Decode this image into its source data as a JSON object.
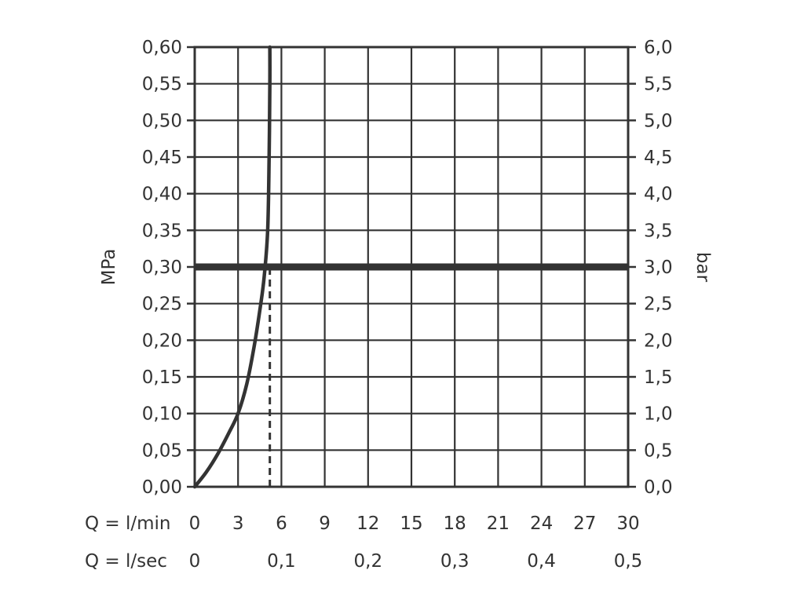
{
  "chart_data": {
    "type": "line",
    "x_unit_row_label": "Q = l/min",
    "x_secondary_row_label": "Q = l/sec",
    "x_ticks": [
      "0",
      "3",
      "6",
      "9",
      "12",
      "15",
      "18",
      "21",
      "24",
      "27",
      "30"
    ],
    "x_secondary_ticks": [
      {
        "x": 0,
        "label": "0"
      },
      {
        "x": 6,
        "label": "0,1"
      },
      {
        "x": 12,
        "label": "0,2"
      },
      {
        "x": 18,
        "label": "0,3"
      },
      {
        "x": 24,
        "label": "0,4"
      },
      {
        "x": 30,
        "label": "0,5"
      }
    ],
    "xlim": [
      0,
      30
    ],
    "ylabel_left": "MPa",
    "ylabel_right": "bar",
    "y_ticks_left": [
      "0,00",
      "0,05",
      "0,10",
      "0,15",
      "0,20",
      "0,25",
      "0,30",
      "0,35",
      "0,40",
      "0,45",
      "0,50",
      "0,55",
      "0,60"
    ],
    "y_ticks_right": [
      "0,0",
      "0,5",
      "1,0",
      "1,5",
      "2,0",
      "2,5",
      "3,0",
      "3,5",
      "4,0",
      "4,5",
      "5,0",
      "5,5",
      "6,0"
    ],
    "ylim": [
      0,
      0.6
    ],
    "grid": true,
    "series": [
      {
        "x": [
          0,
          0.8,
          1.6,
          2.4,
          3.0,
          3.6,
          4.1,
          4.5,
          4.8,
          5.05,
          5.15,
          5.2,
          5.2
        ],
        "y": [
          0,
          0.02,
          0.045,
          0.075,
          0.1,
          0.14,
          0.19,
          0.24,
          0.285,
          0.35,
          0.45,
          0.55,
          0.6
        ]
      }
    ],
    "reference_line": {
      "y": 0.3
    },
    "dashed_marker": {
      "x": 5.2,
      "y_from": 0,
      "y_to": 0.3
    }
  }
}
